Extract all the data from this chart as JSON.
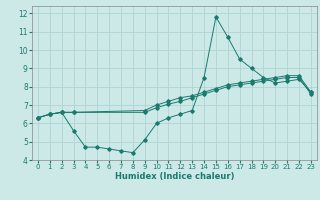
{
  "title": "",
  "xlabel": "Humidex (Indice chaleur)",
  "background_color": "#cce9e8",
  "grid_color": "#aed4d3",
  "line_color": "#1a7a6e",
  "xlim": [
    -0.5,
    23.5
  ],
  "ylim": [
    4,
    12.4
  ],
  "xticks": [
    0,
    1,
    2,
    3,
    4,
    5,
    6,
    7,
    8,
    9,
    10,
    11,
    12,
    13,
    14,
    15,
    16,
    17,
    18,
    19,
    20,
    21,
    22,
    23
  ],
  "yticks": [
    4,
    5,
    6,
    7,
    8,
    9,
    10,
    11,
    12
  ],
  "line1_x": [
    0,
    1,
    2,
    3,
    4,
    5,
    6,
    7,
    8,
    9,
    10,
    11,
    12,
    13,
    14,
    15,
    16,
    17,
    18,
    19,
    20,
    21,
    22,
    23
  ],
  "line1_y": [
    6.3,
    6.5,
    6.6,
    5.6,
    4.7,
    4.7,
    4.6,
    4.5,
    4.4,
    5.1,
    6.0,
    6.3,
    6.5,
    6.7,
    8.5,
    11.8,
    10.7,
    9.5,
    9.0,
    8.5,
    8.2,
    8.3,
    8.4,
    7.7
  ],
  "line2_x": [
    0,
    1,
    2,
    3,
    9,
    10,
    11,
    12,
    13,
    14,
    15,
    16,
    17,
    18,
    19,
    20,
    21,
    22,
    23
  ],
  "line2_y": [
    6.3,
    6.5,
    6.6,
    6.6,
    6.7,
    7.0,
    7.2,
    7.4,
    7.5,
    7.7,
    7.9,
    8.1,
    8.2,
    8.3,
    8.4,
    8.5,
    8.6,
    8.6,
    7.7
  ],
  "line3_x": [
    0,
    1,
    2,
    3,
    9,
    10,
    11,
    12,
    13,
    14,
    15,
    16,
    17,
    18,
    19,
    20,
    21,
    22,
    23
  ],
  "line3_y": [
    6.3,
    6.5,
    6.6,
    6.6,
    6.6,
    6.85,
    7.05,
    7.2,
    7.4,
    7.6,
    7.8,
    8.0,
    8.1,
    8.2,
    8.3,
    8.4,
    8.5,
    8.5,
    7.6
  ],
  "xlabel_fontsize": 6.0,
  "tick_fontsize": 5.0,
  "lw": 0.7,
  "ms": 1.8
}
